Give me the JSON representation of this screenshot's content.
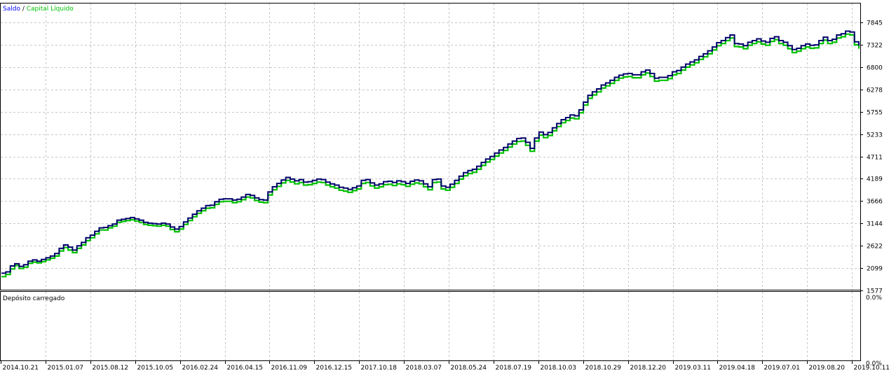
{
  "chart_data": {
    "type": "line",
    "legend": {
      "saldo": "Saldo",
      "separator": " / ",
      "capital": "Capital Líquido",
      "saldo_color": "#0000ff",
      "capital_color": "#00c000",
      "placement": "top-left"
    },
    "line_colors": {
      "saldo": "#00006a",
      "capital": "#00c000"
    },
    "grid": true,
    "ylim": [
      1577,
      8000
    ],
    "y_ticks": [
      "7845",
      "7322",
      "6800",
      "6278",
      "5755",
      "5233",
      "4711",
      "4189",
      "3666",
      "3144",
      "2622",
      "2099",
      "1577"
    ],
    "x_ticks": [
      "2014.10.21",
      "2015.01.07",
      "2015.08.12",
      "2015.10.05",
      "2016.02.24",
      "2016.04.15",
      "2016.11.09",
      "2016.12.15",
      "2017.10.18",
      "2018.03.07",
      "2018.05.24",
      "2018.07.19",
      "2018.10.03",
      "2018.10.29",
      "2018.12.20",
      "2019.03.11",
      "2019.04.18",
      "2019.07.01",
      "2019.08.20",
      "2019.10.11"
    ],
    "series": [
      {
        "name": "Saldo",
        "y": [
          1980,
          2010,
          2150,
          2200,
          2140,
          2180,
          2260,
          2290,
          2260,
          2300,
          2340,
          2380,
          2440,
          2560,
          2640,
          2590,
          2520,
          2620,
          2700,
          2810,
          2870,
          2960,
          3040,
          3050,
          3090,
          3130,
          3220,
          3240,
          3260,
          3280,
          3250,
          3220,
          3170,
          3150,
          3140,
          3130,
          3150,
          3130,
          3060,
          3010,
          3070,
          3180,
          3270,
          3360,
          3440,
          3500,
          3560,
          3570,
          3650,
          3710,
          3720,
          3720,
          3690,
          3710,
          3760,
          3820,
          3800,
          3740,
          3700,
          3690,
          3880,
          4000,
          4080,
          4160,
          4220,
          4180,
          4140,
          4170,
          4110,
          4120,
          4150,
          4180,
          4170,
          4110,
          4070,
          4040,
          3990,
          3970,
          3940,
          3980,
          4020,
          4150,
          4170,
          4090,
          4040,
          4070,
          4120,
          4130,
          4100,
          4140,
          4120,
          4080,
          4130,
          4160,
          4140,
          4070,
          4000,
          4170,
          4180,
          4020,
          3990,
          4060,
          4150,
          4250,
          4330,
          4380,
          4410,
          4480,
          4570,
          4650,
          4710,
          4790,
          4860,
          4920,
          5000,
          5070,
          5130,
          5140,
          5040,
          4900,
          5140,
          5280,
          5220,
          5270,
          5380,
          5480,
          5570,
          5620,
          5680,
          5660,
          5800,
          5980,
          6140,
          6220,
          6290,
          6380,
          6430,
          6490,
          6560,
          6610,
          6640,
          6650,
          6620,
          6620,
          6690,
          6730,
          6650,
          6540,
          6560,
          6560,
          6600,
          6690,
          6720,
          6800,
          6870,
          6920,
          6970,
          7050,
          7110,
          7180,
          7270,
          7370,
          7420,
          7490,
          7550,
          7350,
          7340,
          7300,
          7380,
          7420,
          7460,
          7410,
          7380,
          7470,
          7510,
          7420,
          7380,
          7300,
          7210,
          7240,
          7300,
          7340,
          7310,
          7320,
          7420,
          7500,
          7420,
          7450,
          7550,
          7580,
          7640,
          7620,
          7390,
          7300
        ]
      },
      {
        "name": "Capital Líquido",
        "y": [
          1900,
          1950,
          2080,
          2160,
          2090,
          2120,
          2210,
          2240,
          2220,
          2250,
          2290,
          2330,
          2380,
          2500,
          2580,
          2520,
          2460,
          2560,
          2640,
          2740,
          2810,
          2900,
          2990,
          2990,
          3040,
          3080,
          3170,
          3190,
          3210,
          3230,
          3200,
          3170,
          3120,
          3100,
          3090,
          3080,
          3100,
          3080,
          3000,
          2950,
          3010,
          3120,
          3210,
          3300,
          3380,
          3440,
          3500,
          3510,
          3590,
          3650,
          3660,
          3660,
          3630,
          3650,
          3700,
          3760,
          3740,
          3680,
          3640,
          3630,
          3810,
          3930,
          4010,
          4090,
          4150,
          4110,
          4070,
          4100,
          4040,
          4050,
          4080,
          4110,
          4100,
          4040,
          4000,
          3970,
          3920,
          3900,
          3870,
          3910,
          3950,
          4080,
          4100,
          4020,
          3970,
          4000,
          4050,
          4060,
          4030,
          4070,
          4050,
          4010,
          4060,
          4090,
          4070,
          4000,
          3930,
          4100,
          4110,
          3950,
          3920,
          3990,
          4080,
          4180,
          4260,
          4310,
          4340,
          4410,
          4500,
          4580,
          4640,
          4720,
          4790,
          4850,
          4930,
          5000,
          5060,
          5070,
          4970,
          4830,
          5070,
          5210,
          5150,
          5200,
          5310,
          5410,
          5500,
          5550,
          5610,
          5590,
          5730,
          5910,
          6070,
          6150,
          6220,
          6310,
          6360,
          6420,
          6490,
          6540,
          6570,
          6580,
          6550,
          6550,
          6620,
          6660,
          6580,
          6470,
          6490,
          6490,
          6530,
          6620,
          6650,
          6730,
          6800,
          6850,
          6900,
          6980,
          7040,
          7110,
          7200,
          7300,
          7350,
          7420,
          7480,
          7280,
          7270,
          7230,
          7310,
          7350,
          7390,
          7340,
          7310,
          7400,
          7440,
          7350,
          7310,
          7230,
          7140,
          7170,
          7230,
          7270,
          7240,
          7250,
          7350,
          7430,
          7350,
          7380,
          7480,
          7510,
          7570,
          7550,
          7320,
          7230
        ]
      }
    ]
  },
  "lower_panel": {
    "label": "Depósito carregado",
    "top_value": "0.0%",
    "bottom_value": "0.0%"
  }
}
